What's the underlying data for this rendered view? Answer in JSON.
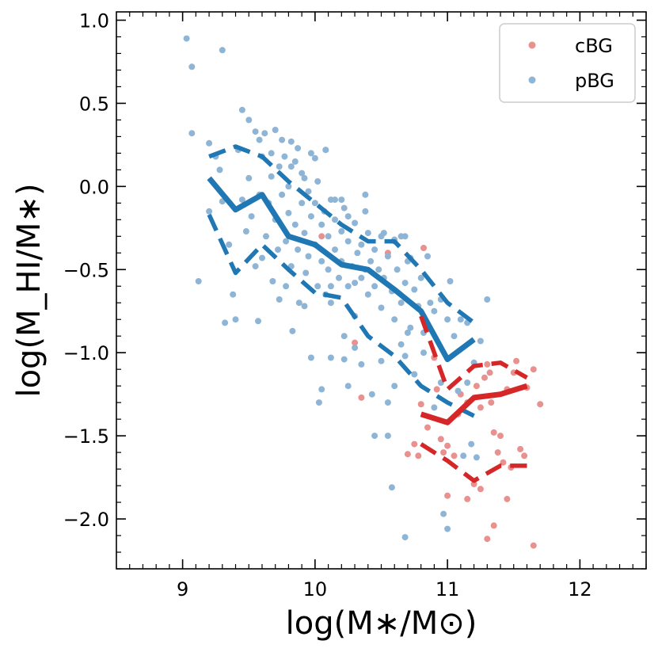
{
  "chart_data": {
    "type": "scatter",
    "xlim": [
      8.5,
      12.5
    ],
    "ylim": [
      -2.3,
      1.05
    ],
    "x_ticks": [
      9,
      10,
      11,
      12
    ],
    "y_ticks": [
      1.0,
      0.5,
      0.0,
      -0.5,
      -1.0,
      -1.5,
      -2.0
    ],
    "x_tick_labels": [
      "9",
      "10",
      "11",
      "12"
    ],
    "y_tick_labels": [
      "1.0",
      "0.5",
      "0.0",
      "−0.5",
      "−1.0",
      "−1.5",
      "−2.0"
    ],
    "xlabel": "log(M∗/M⊙)",
    "ylabel": "log(M_HI/M∗)",
    "grid": false,
    "legend_position": "top-right",
    "colors": {
      "cBG": "#d62728",
      "pBG": "#1f77b4",
      "cBG_points": "#e8918f",
      "pBG_points": "#8fb5d6"
    },
    "series": [
      {
        "name": "cBG",
        "points": [
          [
            10.3,
            -0.94
          ],
          [
            10.35,
            -1.27
          ],
          [
            10.7,
            -1.61
          ],
          [
            10.75,
            -1.55
          ],
          [
            10.78,
            -1.62
          ],
          [
            10.8,
            -1.31
          ],
          [
            10.82,
            -0.37
          ],
          [
            10.85,
            -1.45
          ],
          [
            10.9,
            -1.03
          ],
          [
            10.92,
            -1.22
          ],
          [
            10.95,
            -1.52
          ],
          [
            10.97,
            -1.6
          ],
          [
            11.0,
            -1.56
          ],
          [
            11.05,
            -1.62
          ],
          [
            11.08,
            -1.37
          ],
          [
            11.1,
            -1.25
          ],
          [
            11.15,
            -1.3
          ],
          [
            11.2,
            -1.79
          ],
          [
            11.22,
            -1.2
          ],
          [
            11.25,
            -1.33
          ],
          [
            11.3,
            -1.07
          ],
          [
            11.32,
            -1.12
          ],
          [
            11.35,
            -1.48
          ],
          [
            11.38,
            -1.6
          ],
          [
            11.4,
            -1.5
          ],
          [
            11.42,
            -1.66
          ],
          [
            11.45,
            -1.22
          ],
          [
            11.48,
            -1.69
          ],
          [
            11.5,
            -1.12
          ],
          [
            11.52,
            -1.05
          ],
          [
            11.55,
            -1.58
          ],
          [
            11.58,
            -1.62
          ],
          [
            11.6,
            -1.21
          ],
          [
            11.65,
            -1.1
          ],
          [
            11.7,
            -1.31
          ],
          [
            11.0,
            -1.86
          ],
          [
            11.15,
            -1.88
          ],
          [
            11.25,
            -1.82
          ],
          [
            11.3,
            -2.12
          ],
          [
            11.35,
            -2.04
          ],
          [
            11.45,
            -1.88
          ],
          [
            11.65,
            -2.16
          ],
          [
            11.28,
            -1.15
          ],
          [
            11.33,
            -1.3
          ],
          [
            10.05,
            -0.3
          ],
          [
            10.55,
            -0.4
          ]
        ],
        "median": {
          "x": [
            10.8,
            11.0,
            11.2,
            11.4,
            11.6
          ],
          "y": [
            -1.37,
            -1.42,
            -1.27,
            -1.25,
            -1.2
          ]
        },
        "p16": {
          "x": [
            10.8,
            11.0,
            11.2,
            11.4,
            11.6
          ],
          "y": [
            -1.55,
            -1.65,
            -1.77,
            -1.68,
            -1.68
          ]
        },
        "p84": {
          "x": [
            10.8,
            11.0,
            11.2,
            11.4,
            11.6
          ],
          "y": [
            -0.78,
            -1.22,
            -1.08,
            -1.06,
            -1.15
          ]
        }
      },
      {
        "name": "pBG",
        "points": [
          [
            9.03,
            0.89
          ],
          [
            9.07,
            0.72
          ],
          [
            9.07,
            0.32
          ],
          [
            9.3,
            0.82
          ],
          [
            9.12,
            -0.57
          ],
          [
            9.2,
            0.26
          ],
          [
            9.2,
            -0.15
          ],
          [
            9.25,
            0.18
          ],
          [
            9.28,
            0.1
          ],
          [
            9.3,
            -0.09
          ],
          [
            9.32,
            -0.82
          ],
          [
            9.35,
            -0.35
          ],
          [
            9.38,
            -0.65
          ],
          [
            9.4,
            -0.8
          ],
          [
            9.42,
            0.22
          ],
          [
            9.45,
            0.46
          ],
          [
            9.45,
            -0.08
          ],
          [
            9.48,
            -0.27
          ],
          [
            9.5,
            0.05
          ],
          [
            9.5,
            0.4
          ],
          [
            9.52,
            -0.18
          ],
          [
            9.55,
            -0.48
          ],
          [
            9.55,
            0.33
          ],
          [
            9.58,
            0.28
          ],
          [
            9.58,
            -0.05
          ],
          [
            9.6,
            0.18
          ],
          [
            9.6,
            -0.43
          ],
          [
            9.62,
            0.32
          ],
          [
            9.63,
            -0.3
          ],
          [
            9.65,
            -0.1
          ],
          [
            9.67,
            0.06
          ],
          [
            9.67,
            0.2
          ],
          [
            9.7,
            -0.2
          ],
          [
            9.7,
            0.34
          ],
          [
            9.72,
            -0.38
          ],
          [
            9.73,
            0.12
          ],
          [
            9.75,
            -0.05
          ],
          [
            9.75,
            0.28
          ],
          [
            9.78,
            -0.33
          ],
          [
            9.78,
            -0.6
          ],
          [
            9.8,
            0.0
          ],
          [
            9.8,
            -0.16
          ],
          [
            9.82,
            0.27
          ],
          [
            9.82,
            -0.48
          ],
          [
            9.85,
            -0.23
          ],
          [
            9.85,
            0.15
          ],
          [
            9.87,
            -0.38
          ],
          [
            9.88,
            -0.7
          ],
          [
            9.9,
            -0.1
          ],
          [
            9.9,
            0.08
          ],
          [
            9.92,
            -0.28
          ],
          [
            9.93,
            -0.52
          ],
          [
            9.95,
            -0.03
          ],
          [
            9.95,
            -0.42
          ],
          [
            9.97,
            0.2
          ],
          [
            9.97,
            -0.18
          ],
          [
            10.0,
            -0.35
          ],
          [
            10.0,
            -0.1
          ],
          [
            10.02,
            -0.6
          ],
          [
            10.02,
            0.03
          ],
          [
            10.05,
            -0.23
          ],
          [
            10.05,
            -0.45
          ],
          [
            10.07,
            -0.15
          ],
          [
            10.08,
            0.22
          ],
          [
            10.1,
            -0.3
          ],
          [
            10.1,
            -0.5
          ],
          [
            10.12,
            -0.08
          ],
          [
            10.12,
            -0.7
          ],
          [
            10.15,
            -0.38
          ],
          [
            10.15,
            -0.2
          ],
          [
            10.18,
            -0.55
          ],
          [
            10.2,
            -0.27
          ],
          [
            10.2,
            -0.45
          ],
          [
            10.22,
            -0.13
          ],
          [
            10.25,
            -0.6
          ],
          [
            10.25,
            -0.33
          ],
          [
            10.28,
            -0.48
          ],
          [
            10.3,
            -0.22
          ],
          [
            10.3,
            -0.78
          ],
          [
            10.32,
            -0.4
          ],
          [
            10.35,
            -0.55
          ],
          [
            10.35,
            -0.35
          ],
          [
            10.38,
            -0.5
          ],
          [
            10.4,
            -0.28
          ],
          [
            10.4,
            -0.65
          ],
          [
            10.42,
            -0.45
          ],
          [
            10.45,
            -0.6
          ],
          [
            10.45,
            -0.38
          ],
          [
            10.48,
            -0.5
          ],
          [
            10.5,
            -0.73
          ],
          [
            10.5,
            -0.3
          ],
          [
            10.52,
            -0.55
          ],
          [
            10.55,
            -0.42
          ],
          [
            10.58,
            -0.63
          ],
          [
            10.6,
            -0.33
          ],
          [
            10.6,
            -0.8
          ],
          [
            10.62,
            -0.5
          ],
          [
            10.65,
            -0.7
          ],
          [
            10.65,
            -0.3
          ],
          [
            10.68,
            -0.58
          ],
          [
            10.7,
            -0.45
          ],
          [
            10.72,
            -0.85
          ],
          [
            10.75,
            -0.62
          ],
          [
            10.78,
            -0.72
          ],
          [
            10.8,
            -0.55
          ],
          [
            10.82,
            -0.88
          ],
          [
            10.85,
            -0.42
          ],
          [
            10.87,
            -0.7
          ],
          [
            10.9,
            -0.75
          ],
          [
            10.95,
            -0.68
          ],
          [
            11.0,
            -0.8
          ],
          [
            11.02,
            -0.57
          ],
          [
            11.05,
            -0.9
          ],
          [
            11.1,
            -0.8
          ],
          [
            11.15,
            -0.82
          ],
          [
            11.2,
            -1.06
          ],
          [
            11.25,
            -0.93
          ],
          [
            11.3,
            -0.68
          ],
          [
            11.15,
            -1.18
          ],
          [
            11.08,
            -1.23
          ],
          [
            9.68,
            -0.57
          ],
          [
            9.73,
            -0.68
          ],
          [
            9.83,
            -0.87
          ],
          [
            9.92,
            -0.72
          ],
          [
            9.97,
            -1.03
          ],
          [
            10.03,
            -1.3
          ],
          [
            10.05,
            -1.22
          ],
          [
            10.12,
            -1.03
          ],
          [
            10.22,
            -0.9
          ],
          [
            10.25,
            -1.2
          ],
          [
            10.3,
            -0.97
          ],
          [
            10.35,
            -1.07
          ],
          [
            10.43,
            -1.25
          ],
          [
            10.5,
            -1.05
          ],
          [
            10.55,
            -1.3
          ],
          [
            10.6,
            -1.2
          ],
          [
            10.65,
            -0.95
          ],
          [
            10.68,
            -1.02
          ],
          [
            10.7,
            -0.88
          ],
          [
            10.75,
            -1.13
          ],
          [
            10.82,
            -1.0
          ],
          [
            10.9,
            -1.33
          ],
          [
            10.95,
            -1.18
          ],
          [
            11.12,
            -1.62
          ],
          [
            11.18,
            -1.55
          ],
          [
            11.22,
            -1.63
          ],
          [
            10.58,
            -1.81
          ],
          [
            10.68,
            -2.11
          ],
          [
            10.97,
            -1.97
          ],
          [
            11.0,
            -2.06
          ],
          [
            10.55,
            -1.5
          ],
          [
            10.45,
            -1.5
          ],
          [
            10.15,
            -0.08
          ],
          [
            10.25,
            -0.18
          ],
          [
            10.0,
            0.17
          ],
          [
            10.08,
            0.22
          ],
          [
            9.87,
            0.23
          ],
          [
            9.82,
            0.12
          ],
          [
            9.77,
            0.18
          ],
          [
            9.92,
            0.05
          ],
          [
            10.2,
            -0.08
          ],
          [
            10.38,
            -0.15
          ],
          [
            10.52,
            -0.28
          ],
          [
            10.6,
            -0.32
          ],
          [
            10.68,
            -0.3
          ],
          [
            10.72,
            -0.43
          ],
          [
            10.38,
            -0.05
          ],
          [
            10.22,
            -1.04
          ],
          [
            9.57,
            -0.81
          ],
          [
            10.08,
            -0.65
          ],
          [
            10.12,
            -0.6
          ],
          [
            10.3,
            -0.58
          ]
        ],
        "median": {
          "x": [
            9.2,
            9.4,
            9.6,
            9.8,
            10.0,
            10.2,
            10.4,
            10.6,
            10.8,
            11.0,
            11.2
          ],
          "y": [
            0.05,
            -0.14,
            -0.05,
            -0.3,
            -0.35,
            -0.47,
            -0.5,
            -0.62,
            -0.75,
            -1.04,
            -0.92
          ]
        },
        "p16": {
          "x": [
            9.2,
            9.4,
            9.6,
            9.8,
            10.0,
            10.2,
            10.4,
            10.6,
            10.8,
            11.0,
            11.2
          ],
          "y": [
            -0.17,
            -0.52,
            -0.35,
            -0.5,
            -0.64,
            -0.67,
            -0.9,
            -1.02,
            -1.2,
            -1.3,
            -1.38
          ]
        },
        "p84": {
          "x": [
            9.2,
            9.4,
            9.6,
            9.8,
            10.0,
            10.2,
            10.4,
            10.6,
            10.8,
            11.0,
            11.2
          ],
          "y": [
            0.18,
            0.24,
            0.18,
            0.03,
            -0.1,
            -0.23,
            -0.33,
            -0.33,
            -0.5,
            -0.7,
            -0.82
          ]
        }
      }
    ]
  }
}
